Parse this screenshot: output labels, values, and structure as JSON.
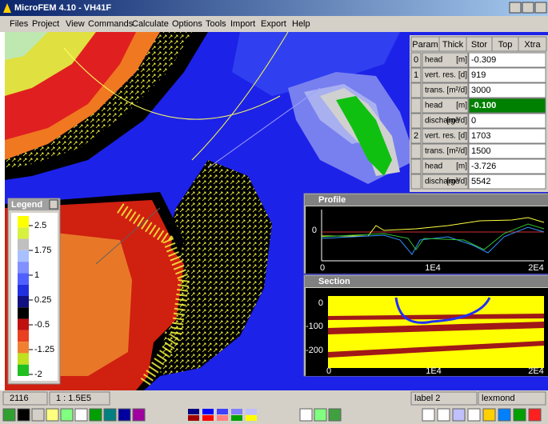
{
  "window": {
    "title": "MicroFEM 4.10 - VH41F",
    "menu": [
      "Files",
      "Project",
      "View",
      "Commands",
      "Calculate",
      "Options",
      "Tools",
      "Import",
      "Export",
      "Help"
    ]
  },
  "param_panel": {
    "tabs": [
      "Param",
      "Thick",
      "Stor",
      "Top",
      "Xtra"
    ],
    "rows": [
      {
        "layer": "0",
        "param": "head",
        "unit": "[m]",
        "value": "-0.309"
      },
      {
        "layer": "1",
        "param": "vert. res.",
        "unit": "[d]",
        "value": "919"
      },
      {
        "param": "trans.",
        "unit": "[m²/d]",
        "value": "3000"
      },
      {
        "param": "head",
        "unit": "[m]",
        "value": "-0.100"
      },
      {
        "param": "discharge",
        "unit": "[m³/d]",
        "value": "0"
      },
      {
        "layer": "2",
        "param": "vert. res.",
        "unit": "[d]",
        "value": "1703"
      },
      {
        "param": "trans.",
        "unit": "[m²/d]",
        "value": "1500"
      },
      {
        "param": "head",
        "unit": "[m]",
        "value": "-3.726"
      },
      {
        "param": "discharge",
        "unit": "[m³/d]",
        "value": "5542"
      }
    ]
  },
  "legend": {
    "title": "Legend",
    "labels": [
      "2.5",
      "1.75",
      "1",
      "0.25",
      "-0.5",
      "-1.25",
      "-2"
    ]
  },
  "profile": {
    "title": "Profile",
    "y_labels": [
      "0"
    ],
    "x_labels": [
      "0",
      "1E4",
      "2E4"
    ]
  },
  "section": {
    "title": "Section",
    "y_labels": [
      "0",
      "-100",
      "-200"
    ],
    "x_labels": [
      "0",
      "1E4",
      "2E4"
    ]
  },
  "status": {
    "node": "2116",
    "scale": "1 : 1.5E5",
    "label": "label 2",
    "name": "lexmond"
  }
}
